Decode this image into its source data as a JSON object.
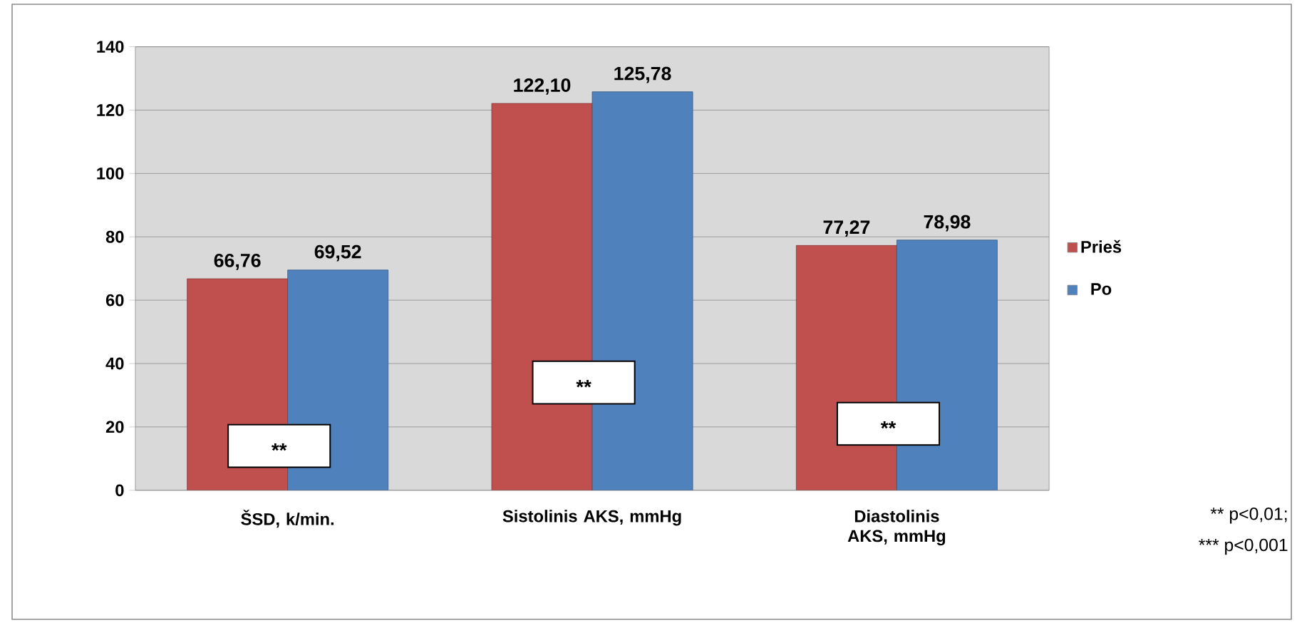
{
  "chart_data": {
    "type": "bar",
    "categories": [
      "ŠSD, k/min.",
      "Sistolinis AKS, mmHg",
      "Diastolinis AKS, mmHg"
    ],
    "series": [
      {
        "name": "Prieš",
        "color": "#c0504d",
        "values": [
          66.76,
          122.1,
          77.27
        ],
        "value_labels": [
          "66,76",
          "122,10",
          "77,27"
        ]
      },
      {
        "name": "Po",
        "color": "#4f81bd",
        "values": [
          69.52,
          125.78,
          78.98
        ],
        "value_labels": [
          "69,52",
          "125,78",
          "78,98"
        ]
      }
    ],
    "ylim": [
      0,
      140
    ],
    "yticks": [
      0,
      20,
      40,
      60,
      80,
      100,
      120,
      140
    ],
    "grid": "y",
    "legend": "right",
    "annotations": [
      {
        "text": "**",
        "x": "ŠSD, k/min.",
        "y": 14
      },
      {
        "text": "**",
        "x": "Sistolinis AKS, mmHg",
        "y": 34
      },
      {
        "text": "**",
        "x": "Diastolinis AKS, mmHg",
        "y": 21
      },
      "** p<0,01;",
      "*** p<0,001"
    ]
  }
}
